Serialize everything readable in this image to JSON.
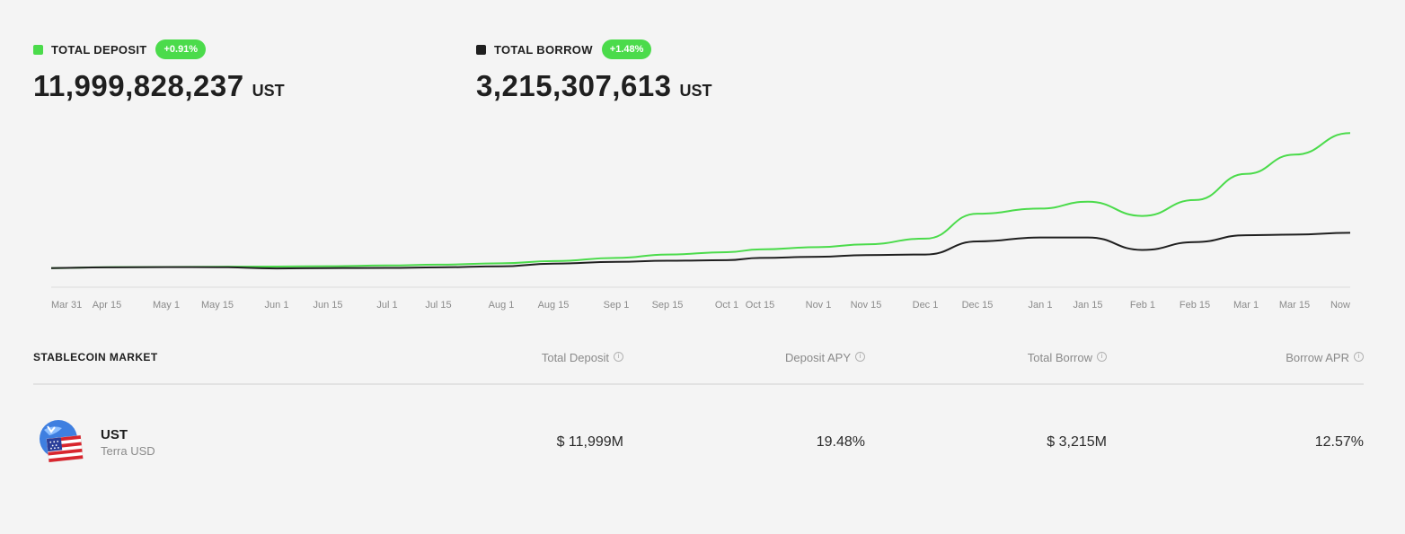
{
  "summary": {
    "deposit": {
      "label": "TOTAL DEPOSIT",
      "change": "+0.91%",
      "value": "11,999,828,237",
      "unit": "UST",
      "color": "#4bdb4b"
    },
    "borrow": {
      "label": "TOTAL BORROW",
      "change": "+1.48%",
      "value": "3,215,307,613",
      "unit": "UST",
      "color": "#1f1f1f"
    },
    "badge_color": "#4bdb4b"
  },
  "chart_data": {
    "type": "line",
    "xlabel": "",
    "ylabel": "",
    "grid": false,
    "x_ticks": [
      "Mar 31",
      "Apr 15",
      "May 1",
      "May 15",
      "Jun 1",
      "Jun 15",
      "Jul 1",
      "Jul 15",
      "Aug 1",
      "Aug 15",
      "Sep 1",
      "Sep 15",
      "Oct 1",
      "Oct 15",
      "Nov 1",
      "Nov 15",
      "Dec 1",
      "Dec 15",
      "Jan 1",
      "Jan 15",
      "Feb 1",
      "Feb 15",
      "Mar 1",
      "Mar 15",
      "Now"
    ],
    "x": [
      "Mar 31",
      "Apr 15",
      "May 1",
      "May 15",
      "Jun 1",
      "Jun 15",
      "Jul 1",
      "Jul 15",
      "Aug 1",
      "Aug 15",
      "Sep 1",
      "Sep 15",
      "Oct 1",
      "Oct 15",
      "Nov 1",
      "Nov 15",
      "Dec 1",
      "Dec 15",
      "Jan 1",
      "Jan 15",
      "Feb 1",
      "Feb 15",
      "Mar 1",
      "Mar 15",
      "Now"
    ],
    "ylim": [
      0,
      12500
    ],
    "series": [
      {
        "name": "TOTAL DEPOSIT",
        "color": "#4bdb4b",
        "values": [
          100,
          180,
          200,
          220,
          240,
          270,
          330,
          400,
          520,
          720,
          1000,
          1300,
          1500,
          1750,
          1950,
          2200,
          2700,
          4900,
          5350,
          5950,
          4700,
          6100,
          8400,
          10100,
          11999
        ]
      },
      {
        "name": "TOTAL BORROW",
        "color": "#1f1f1f",
        "values": [
          100,
          170,
          190,
          180,
          70,
          100,
          120,
          170,
          260,
          500,
          650,
          750,
          800,
          1000,
          1100,
          1250,
          1300,
          2450,
          2800,
          2800,
          1700,
          2400,
          3000,
          3050,
          3215
        ]
      }
    ]
  },
  "market": {
    "title": "STABLECOIN MARKET",
    "columns": [
      "Total Deposit",
      "Deposit APY",
      "Total Borrow",
      "Borrow APR"
    ],
    "info_glyph": "i",
    "rows": [
      {
        "symbol": "UST",
        "name": "Terra USD",
        "icon": "ust-flag-icon",
        "total_deposit": "$ 11,999M",
        "deposit_apy": "19.48%",
        "total_borrow": "$ 3,215M",
        "borrow_apr": "12.57%"
      }
    ]
  }
}
